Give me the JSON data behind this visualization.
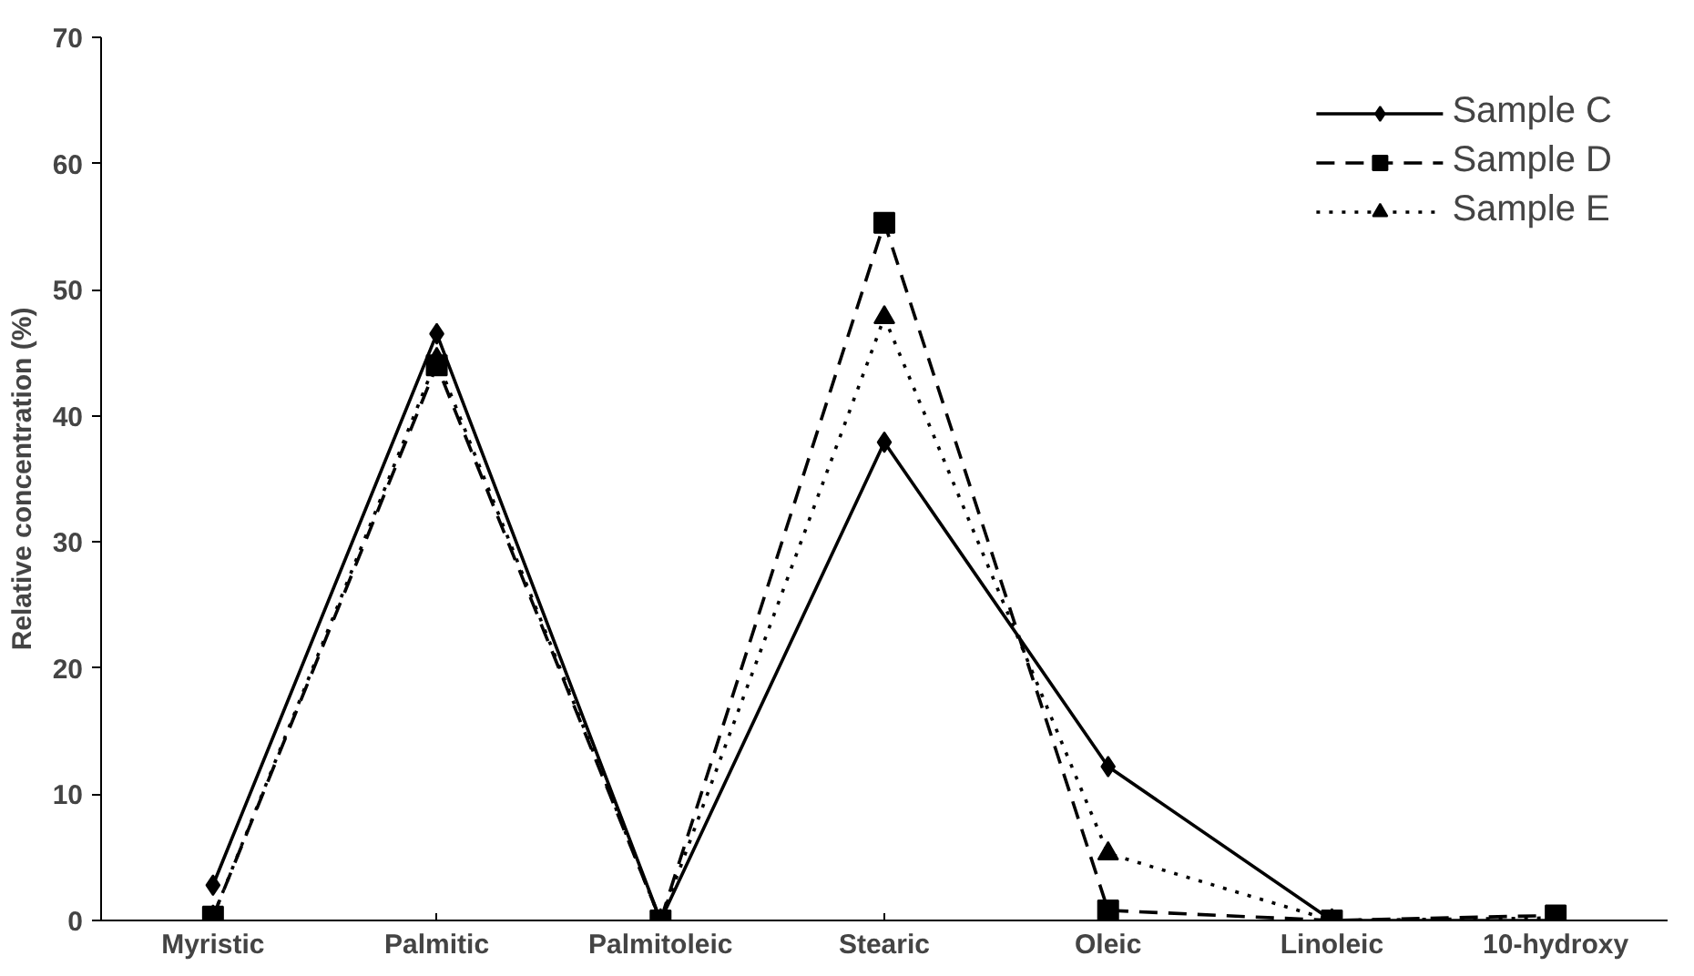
{
  "chart_data": {
    "type": "line",
    "ylabel": "Relative concentration (%)",
    "categories": [
      "Myristic",
      "Palmitic",
      "Palmitoleic",
      "Stearic",
      "Oleic",
      "Linoleic",
      "10-hydroxy"
    ],
    "series": [
      {
        "name": "Sample C",
        "color": "#000000",
        "marker": "diamond",
        "line_style": "solid",
        "values": [
          2.8,
          46.5,
          0,
          37.9,
          12.2,
          0,
          0
        ]
      },
      {
        "name": "Sample D",
        "color": "#000000",
        "marker": "square",
        "line_style": "dashed",
        "values": [
          0.3,
          44,
          0,
          55.3,
          0.8,
          0,
          0.4
        ]
      },
      {
        "name": "Sample E",
        "color": "#000000",
        "marker": "triangle",
        "line_style": "dotted",
        "values": [
          0.3,
          44.5,
          0,
          47.8,
          5.3,
          0,
          0.2
        ]
      }
    ],
    "ylim": [
      0,
      70
    ],
    "yticks": [
      0,
      10,
      20,
      30,
      40,
      50,
      60,
      70
    ],
    "grid": false,
    "legend": "top right"
  }
}
